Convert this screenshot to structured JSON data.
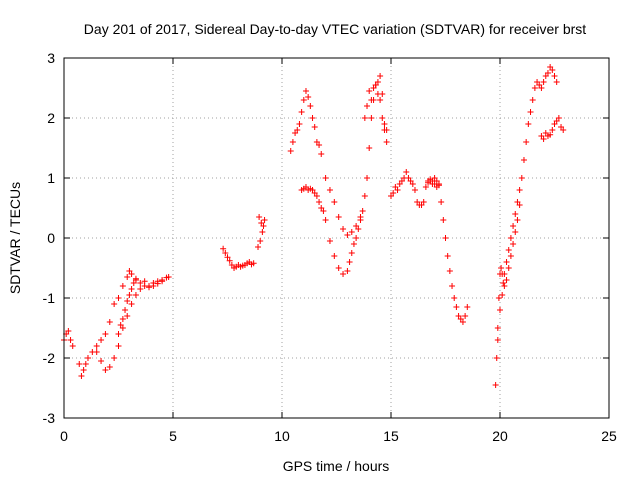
{
  "chart_data": {
    "type": "scatter",
    "title": "Day 201 of 2017, Sidereal Day-to-day VTEC variation (SDTVAR) for receiver brst",
    "xlabel": "GPS time / hours",
    "ylabel": "SDTVAR / TECUs",
    "xlim": [
      0,
      25
    ],
    "ylim": [
      -3,
      3
    ],
    "xticks": [
      0,
      5,
      10,
      15,
      20,
      25
    ],
    "yticks": [
      -3,
      -2,
      -1,
      0,
      1,
      2,
      3
    ],
    "grid": true,
    "legend": "none",
    "marker": "plus",
    "series_color": "#ff0000",
    "series": [
      {
        "x": [
          0.0,
          0.1,
          0.2,
          0.3,
          0.4,
          0.7,
          0.8,
          0.9,
          1.0,
          1.1,
          1.3,
          1.5,
          1.7,
          1.9,
          2.1,
          2.3,
          2.5,
          2.7,
          2.9,
          3.0,
          3.1,
          3.3,
          3.5,
          3.7,
          3.9,
          4.1,
          4.3,
          4.5,
          4.7,
          4.8
        ],
        "y": [
          -1.7,
          -1.6,
          -1.55,
          -1.7,
          -1.8,
          -2.1,
          -2.3,
          -2.2,
          -2.1,
          -2.0,
          -1.9,
          -1.8,
          -1.7,
          -1.6,
          -1.4,
          -1.1,
          -1.0,
          -0.8,
          -0.65,
          -0.55,
          -0.6,
          -0.7,
          -0.75,
          -0.72,
          -0.8,
          -0.75,
          -0.72,
          -0.7,
          -0.66,
          -0.65
        ]
      },
      {
        "x": [
          1.5,
          1.7,
          1.9,
          2.1,
          2.3,
          2.5,
          2.7,
          2.9,
          3.1,
          3.3,
          3.5,
          3.7,
          3.9,
          4.1,
          4.3,
          4.5
        ],
        "y": [
          -1.9,
          -2.05,
          -2.2,
          -2.15,
          -2.0,
          -1.8,
          -1.5,
          -1.3,
          -1.1,
          -0.95,
          -0.85,
          -0.8,
          -0.82,
          -0.8,
          -0.76,
          -0.72
        ]
      },
      {
        "x": [
          2.5,
          2.6,
          2.7,
          2.8,
          2.9,
          3.0,
          3.1,
          3.2,
          3.3
        ],
        "y": [
          -1.6,
          -1.45,
          -1.35,
          -1.2,
          -1.05,
          -0.95,
          -0.85,
          -0.75,
          -0.68
        ]
      },
      {
        "x": [
          7.3,
          7.4,
          7.5,
          7.6,
          7.7,
          7.8,
          7.9,
          8.0,
          8.1,
          8.2,
          8.3,
          8.4,
          8.5,
          8.6,
          8.7
        ],
        "y": [
          -0.18,
          -0.25,
          -0.32,
          -0.38,
          -0.45,
          -0.5,
          -0.48,
          -0.45,
          -0.48,
          -0.46,
          -0.45,
          -0.42,
          -0.4,
          -0.44,
          -0.42
        ]
      },
      {
        "x": [
          8.9,
          9.0,
          9.1,
          9.2,
          8.95,
          9.05,
          9.15
        ],
        "y": [
          -0.15,
          -0.05,
          0.1,
          0.3,
          0.35,
          0.25,
          0.2
        ]
      },
      {
        "x": [
          10.4,
          10.5,
          10.6,
          10.7,
          10.8,
          10.9,
          11.0,
          11.1,
          11.2,
          11.3,
          11.4,
          11.5,
          11.6,
          11.7,
          11.8,
          12.0,
          12.2,
          12.4,
          12.6,
          12.8,
          13.0,
          13.2,
          13.4,
          13.6,
          13.8,
          13.9,
          14.0,
          14.1,
          14.2,
          14.3,
          14.4,
          14.5,
          14.6,
          14.7,
          14.8
        ],
        "y": [
          1.45,
          1.6,
          1.75,
          1.8,
          1.9,
          2.1,
          2.3,
          2.45,
          2.35,
          2.2,
          2.0,
          1.85,
          1.6,
          1.55,
          1.4,
          1.0,
          0.8,
          0.6,
          0.35,
          0.15,
          0.05,
          0.1,
          0.2,
          0.35,
          0.7,
          1.0,
          1.5,
          2.0,
          2.3,
          2.55,
          2.6,
          2.7,
          2.4,
          1.8,
          1.6
        ]
      },
      {
        "x": [
          13.8,
          13.9,
          14.0,
          14.1,
          14.2,
          14.3,
          14.4,
          14.5,
          14.6,
          14.7,
          14.8
        ],
        "y": [
          2.0,
          2.2,
          2.45,
          2.3,
          2.5,
          2.55,
          2.4,
          2.3,
          2.0,
          1.9,
          1.8
        ]
      },
      {
        "x": [
          10.9,
          11.0,
          11.1,
          11.2,
          11.3,
          11.4,
          11.5,
          11.6,
          11.7,
          11.8,
          11.9,
          12.0,
          12.2,
          12.4,
          12.6,
          12.8,
          13.0,
          13.1,
          13.2,
          13.3,
          13.4,
          13.5,
          13.6,
          13.7
        ],
        "y": [
          0.8,
          0.82,
          0.85,
          0.8,
          0.82,
          0.8,
          0.75,
          0.7,
          0.6,
          0.5,
          0.45,
          0.3,
          -0.05,
          -0.3,
          -0.5,
          -0.6,
          -0.55,
          -0.4,
          -0.25,
          -0.1,
          0.0,
          0.15,
          0.3,
          0.45
        ]
      },
      {
        "x": [
          15.0,
          15.1,
          15.2,
          15.3,
          15.4,
          15.5,
          15.6,
          15.7,
          15.8,
          15.9,
          16.0,
          16.1,
          16.2,
          16.3,
          16.4,
          16.5,
          16.6,
          16.7,
          16.8,
          16.9,
          17.0,
          17.1,
          17.2,
          17.3,
          17.4,
          17.5,
          17.6,
          17.7,
          17.8,
          17.9,
          18.0,
          18.1,
          18.2,
          18.3,
          18.4,
          18.5
        ],
        "y": [
          0.7,
          0.75,
          0.85,
          0.8,
          0.9,
          0.95,
          1.0,
          1.1,
          1.0,
          0.95,
          0.9,
          0.8,
          0.6,
          0.55,
          0.55,
          0.6,
          0.85,
          0.95,
          0.95,
          0.9,
          1.0,
          0.95,
          0.9,
          0.6,
          0.3,
          0.0,
          -0.3,
          -0.55,
          -0.8,
          -1.0,
          -1.15,
          -1.3,
          -1.35,
          -1.4,
          -1.3,
          -1.15
        ]
      },
      {
        "x": [
          16.7,
          16.8,
          16.9,
          17.0,
          17.1,
          17.2
        ],
        "y": [
          0.92,
          0.98,
          0.95,
          0.9,
          0.85,
          0.88
        ]
      },
      {
        "x": [
          19.8,
          19.85,
          19.9,
          19.95,
          20.0,
          20.05,
          20.1,
          20.15,
          20.2,
          20.3,
          20.4,
          20.5,
          20.6,
          20.7,
          20.8,
          20.9,
          21.0,
          21.1,
          21.2,
          21.3,
          21.4,
          21.5,
          21.6,
          21.7,
          21.8,
          21.9,
          22.0,
          22.1,
          22.2,
          22.3,
          22.4,
          22.5,
          22.6
        ],
        "y": [
          -2.45,
          -2.0,
          -1.5,
          -1.0,
          -0.6,
          -0.5,
          -0.6,
          -0.75,
          -0.6,
          -0.4,
          -0.2,
          0.0,
          0.2,
          0.4,
          0.6,
          0.8,
          1.0,
          1.3,
          1.6,
          1.9,
          2.1,
          2.3,
          2.5,
          2.6,
          2.55,
          2.5,
          2.6,
          2.7,
          2.75,
          2.85,
          2.8,
          2.7,
          2.6
        ]
      },
      {
        "x": [
          19.9,
          20.0,
          20.1,
          20.2,
          20.3,
          20.4,
          20.5,
          20.6,
          20.7,
          20.8,
          20.9
        ],
        "y": [
          -1.7,
          -1.2,
          -0.95,
          -0.8,
          -0.7,
          -0.5,
          -0.3,
          -0.1,
          0.1,
          0.3,
          0.55
        ]
      },
      {
        "x": [
          21.9,
          22.0,
          22.1,
          22.2,
          22.3,
          22.4,
          22.5,
          22.6,
          22.7,
          22.8,
          22.9
        ],
        "y": [
          1.7,
          1.65,
          1.75,
          1.7,
          1.72,
          1.8,
          1.9,
          1.95,
          2.0,
          1.85,
          1.8
        ]
      }
    ]
  }
}
